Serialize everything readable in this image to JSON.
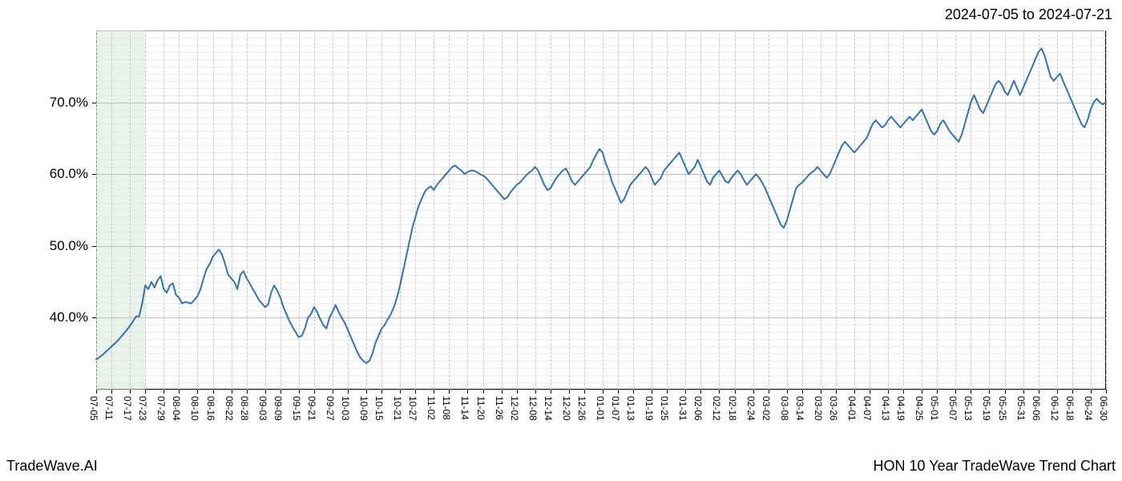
{
  "header": {
    "date_range": "2024-07-05 to 2024-07-21"
  },
  "footer": {
    "brand": "TradeWave.AI",
    "chart_title": "HON 10 Year TradeWave Trend Chart"
  },
  "chart": {
    "type": "line",
    "background_color": "#ffffff",
    "line_color": "#2f74b5",
    "line_width": 2,
    "grid_color": "#bfbfbf",
    "minor_grid_color": "#c8c8c8",
    "border_color": "#000000",
    "highlight_band": {
      "start_label": "07-05",
      "end_label": "07-23",
      "color": "#d9ead9",
      "opacity": 0.55
    },
    "y_axis": {
      "min": 30.0,
      "max": 80.0,
      "ticks": [
        40.0,
        50.0,
        60.0,
        70.0
      ],
      "tick_labels": [
        "40.0%",
        "50.0%",
        "60.0%",
        "70.0%"
      ],
      "label_fontsize": 17
    },
    "x_axis": {
      "labels": [
        "07-05",
        "07-11",
        "07-17",
        "07-23",
        "07-29",
        "08-04",
        "08-10",
        "08-16",
        "08-22",
        "08-28",
        "09-03",
        "09-09",
        "09-15",
        "09-21",
        "09-27",
        "10-03",
        "10-09",
        "10-15",
        "10-21",
        "10-27",
        "11-02",
        "11-08",
        "11-14",
        "11-20",
        "11-26",
        "12-02",
        "12-08",
        "12-14",
        "12-20",
        "12-26",
        "01-01",
        "01-07",
        "01-13",
        "01-19",
        "01-25",
        "01-31",
        "02-06",
        "02-12",
        "02-18",
        "02-24",
        "03-02",
        "03-08",
        "03-14",
        "03-20",
        "03-26",
        "04-01",
        "04-07",
        "04-13",
        "04-19",
        "04-25",
        "05-01",
        "05-07",
        "05-13",
        "05-19",
        "05-25",
        "05-31",
        "06-06",
        "06-12",
        "06-18",
        "06-24",
        "06-30"
      ],
      "label_fontsize": 12,
      "rotation": 90
    },
    "series": {
      "values": [
        34.2,
        34.5,
        34.8,
        35.2,
        35.6,
        36.0,
        36.4,
        36.8,
        37.3,
        37.8,
        38.3,
        38.9,
        39.5,
        40.2,
        40.2,
        42.0,
        44.5,
        44.0,
        45.0,
        44.2,
        45.2,
        45.8,
        44.0,
        43.5,
        44.5,
        44.8,
        43.2,
        42.8,
        42.0,
        42.2,
        42.1,
        42.0,
        42.5,
        43.0,
        44.0,
        45.5,
        46.8,
        47.5,
        48.5,
        49.0,
        49.5,
        48.8,
        47.5,
        46.0,
        45.5,
        45.0,
        44.0,
        46.0,
        46.5,
        45.5,
        44.8,
        44.0,
        43.3,
        42.5,
        42.0,
        41.5,
        41.8,
        43.5,
        44.5,
        43.8,
        42.8,
        41.5,
        40.5,
        39.5,
        38.7,
        38.0,
        37.3,
        37.5,
        38.5,
        40.0,
        40.5,
        41.5,
        40.8,
        39.8,
        39.0,
        38.5,
        40.0,
        40.8,
        41.8,
        40.8,
        40.0,
        39.3,
        38.3,
        37.3,
        36.3,
        35.3,
        34.5,
        34.0,
        33.7,
        34.0,
        35.0,
        36.5,
        37.5,
        38.5,
        39.0,
        39.8,
        40.5,
        41.5,
        42.8,
        44.5,
        46.5,
        48.5,
        50.5,
        52.5,
        54.0,
        55.5,
        56.5,
        57.5,
        58.0,
        58.3,
        57.8,
        58.5,
        59.0,
        59.5,
        60.0,
        60.5,
        61.0,
        61.2,
        60.8,
        60.5,
        60.0,
        60.3,
        60.5,
        60.5,
        60.3,
        60.0,
        59.8,
        59.5,
        59.0,
        58.5,
        58.0,
        57.5,
        57.0,
        56.5,
        56.8,
        57.5,
        58.0,
        58.5,
        58.8,
        59.3,
        59.8,
        60.2,
        60.5,
        61.0,
        60.5,
        59.5,
        58.5,
        57.8,
        58.0,
        58.8,
        59.5,
        60.0,
        60.5,
        60.8,
        60.0,
        59.0,
        58.5,
        59.0,
        59.5,
        60.0,
        60.5,
        61.0,
        62.0,
        62.8,
        63.5,
        63.0,
        61.5,
        60.5,
        59.0,
        58.0,
        57.0,
        56.0,
        56.5,
        57.5,
        58.5,
        59.0,
        59.5,
        60.0,
        60.5,
        61.0,
        60.5,
        59.5,
        58.5,
        59.0,
        59.5,
        60.5,
        61.0,
        61.5,
        62.0,
        62.5,
        63.0,
        62.0,
        61.0,
        60.0,
        60.5,
        61.0,
        62.0,
        61.0,
        60.0,
        59.0,
        58.5,
        59.5,
        60.0,
        60.5,
        59.8,
        59.0,
        58.8,
        59.5,
        60.0,
        60.5,
        60.0,
        59.2,
        58.5,
        59.0,
        59.5,
        60.0,
        59.5,
        58.8,
        58.0,
        57.0,
        56.0,
        55.0,
        54.0,
        53.0,
        52.5,
        53.5,
        55.0,
        56.5,
        58.0,
        58.5,
        58.8,
        59.3,
        59.8,
        60.2,
        60.5,
        61.0,
        60.5,
        60.0,
        59.5,
        60.0,
        61.0,
        62.0,
        63.0,
        64.0,
        64.5,
        64.0,
        63.5,
        63.0,
        63.5,
        64.0,
        64.5,
        65.0,
        66.0,
        67.0,
        67.5,
        67.0,
        66.5,
        66.8,
        67.5,
        68.0,
        67.5,
        67.0,
        66.5,
        67.0,
        67.5,
        68.0,
        67.5,
        68.0,
        68.5,
        69.0,
        68.0,
        67.0,
        66.0,
        65.5,
        66.0,
        67.0,
        67.5,
        66.8,
        66.0,
        65.5,
        65.0,
        64.5,
        65.5,
        67.0,
        68.5,
        70.0,
        71.0,
        70.0,
        69.0,
        68.5,
        69.5,
        70.5,
        71.5,
        72.5,
        73.0,
        72.5,
        71.5,
        71.0,
        72.0,
        73.0,
        72.0,
        71.0,
        72.0,
        73.0,
        74.0,
        75.0,
        76.0,
        77.0,
        77.5,
        76.5,
        75.0,
        73.5,
        73.0,
        73.5,
        74.0,
        73.0,
        72.0,
        71.0,
        70.0,
        69.0,
        68.0,
        67.0,
        66.5,
        67.5,
        69.0,
        70.0,
        70.5,
        70.0,
        69.7,
        70.0
      ]
    }
  }
}
